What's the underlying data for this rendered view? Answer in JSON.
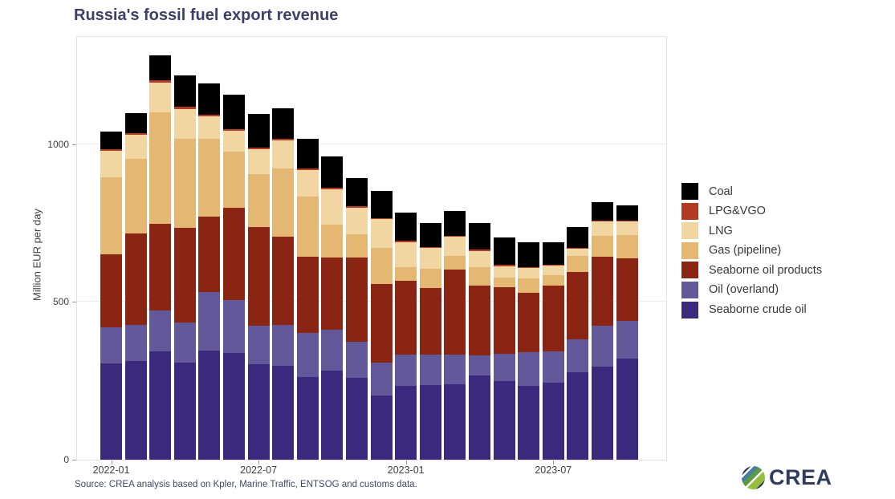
{
  "title": "Russia's fossil fuel export revenue",
  "y_axis": {
    "label": "Million EUR per day"
  },
  "source_note": "Source: CREA analysis based on Kpler, Marine Traffic, ENTSOG and customs data.",
  "brand": {
    "name": "CREA",
    "logo_icon": "crea-pinwheel-circle-icon"
  },
  "colors": {
    "title_text": "#3d3f66",
    "axis_text": "#404040",
    "source_text": "#3f4a64",
    "panel_border": "#e2e2e2",
    "gridline": "#ececec"
  },
  "legend": {
    "items": [
      {
        "label": "Coal",
        "color": "#000000"
      },
      {
        "label": "LPG&VGO",
        "color": "#b13a20"
      },
      {
        "label": "LNG",
        "color": "#f2d6a2"
      },
      {
        "label": "Gas (pipeline)",
        "color": "#e4b872"
      },
      {
        "label": "Seaborne oil products",
        "color": "#8b2513"
      },
      {
        "label": "Oil (overland)",
        "color": "#63589a"
      },
      {
        "label": "Seaborne crude oil",
        "color": "#3a2a7e"
      }
    ]
  },
  "chart_data": {
    "type": "bar",
    "stacked": true,
    "title": "Russia's fossil fuel export revenue",
    "xlabel": "",
    "ylabel": "Million EUR per day",
    "ylim": [
      0,
      1340
    ],
    "grid": "horizontal-major-only",
    "legend_position": "right",
    "gridlines": [
      500,
      1000
    ],
    "y_ticks": [
      {
        "value": 0,
        "label": "0"
      },
      {
        "value": 500,
        "label": "500"
      },
      {
        "value": 1000,
        "label": "1000"
      }
    ],
    "x_ticks": [
      {
        "index": 0,
        "label": "2022-01"
      },
      {
        "index": 6,
        "label": "2022-07"
      },
      {
        "index": 12,
        "label": "2023-01"
      },
      {
        "index": 18,
        "label": "2023-07"
      }
    ],
    "categories": [
      "2022-01",
      "2022-02",
      "2022-03",
      "2022-04",
      "2022-05",
      "2022-06",
      "2022-07",
      "2022-08",
      "2022-09",
      "2022-10",
      "2022-11",
      "2022-12",
      "2023-01",
      "2023-02",
      "2023-03",
      "2023-04",
      "2023-05",
      "2023-06",
      "2023-07",
      "2023-08",
      "2023-09",
      "2023-10"
    ],
    "units": "Million EUR per day",
    "series": [
      {
        "name": "Seaborne crude oil",
        "color": "#3a2a7e",
        "values": [
          305,
          313,
          344,
          307,
          346,
          338,
          302,
          298,
          262,
          282,
          260,
          203,
          234,
          237,
          240,
          268,
          250,
          233,
          243,
          277,
          296,
          321
        ]
      },
      {
        "name": "Oil (overland)",
        "color": "#63589a",
        "values": [
          115,
          115,
          129,
          127,
          186,
          169,
          123,
          128,
          141,
          130,
          115,
          104,
          98,
          95,
          94,
          62,
          86,
          108,
          101,
          104,
          129,
          118
        ]
      },
      {
        "name": "Seaborne oil products",
        "color": "#8b2513",
        "values": [
          230,
          289,
          275,
          302,
          238,
          292,
          312,
          280,
          241,
          228,
          267,
          250,
          235,
          211,
          268,
          221,
          211,
          187,
          207,
          213,
          219,
          200
        ]
      },
      {
        "name": "Gas (pipeline)",
        "color": "#e4b872",
        "values": [
          245,
          237,
          352,
          282,
          246,
          177,
          169,
          216,
          189,
          106,
          72,
          114,
          43,
          61,
          44,
          59,
          30,
          46,
          35,
          51,
          65,
          72
        ]
      },
      {
        "name": "LNG",
        "color": "#f2d6a2",
        "values": [
          85,
          75,
          94,
          93,
          72,
          66,
          78,
          90,
          85,
          112,
          85,
          91,
          79,
          67,
          60,
          52,
          36,
          33,
          30,
          24,
          45,
          44
        ]
      },
      {
        "name": "LPG&VGO",
        "color": "#b13a20",
        "values": [
          5,
          5,
          10,
          8,
          6,
          6,
          6,
          4,
          4,
          4,
          4,
          4,
          4,
          3,
          4,
          4,
          4,
          4,
          3,
          3,
          3,
          3
        ]
      },
      {
        "name": "Coal",
        "color": "#000000",
        "values": [
          55,
          65,
          78,
          100,
          98,
          110,
          105,
          99,
          96,
          99,
          90,
          86,
          89,
          76,
          78,
          84,
          87,
          79,
          70,
          66,
          59,
          49
        ]
      }
    ],
    "totals": [
      1040,
      1099,
      1282,
      1219,
      1192,
      1158,
      1095,
      1115,
      1018,
      961,
      893,
      852,
      782,
      750,
      788,
      750,
      704,
      690,
      689,
      738,
      816,
      807
    ]
  }
}
